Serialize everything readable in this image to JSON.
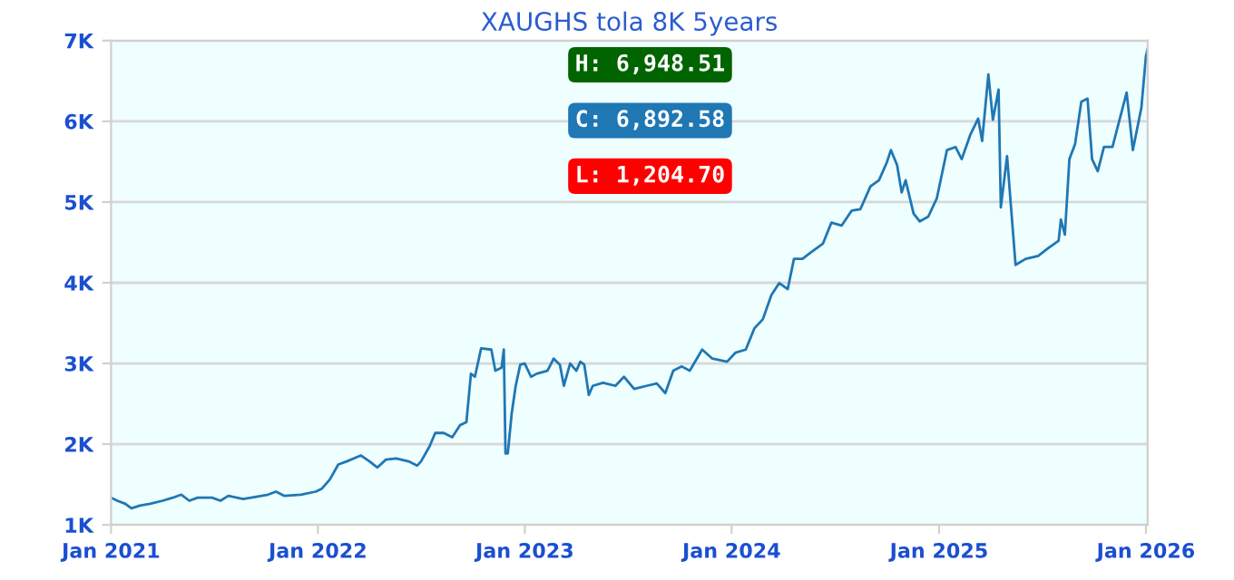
{
  "chart_data": {
    "type": "line",
    "title": "XAUGHS tola 8K 5years",
    "x": [
      "2021-01-01",
      "2021-01-12",
      "2021-01-26",
      "2021-02-06",
      "2021-02-21",
      "2021-03-11",
      "2021-04-02",
      "2021-04-20",
      "2021-05-05",
      "2021-05-19",
      "2021-06-03",
      "2021-06-28",
      "2021-07-13",
      "2021-07-27",
      "2021-08-22",
      "2021-09-17",
      "2021-10-05",
      "2021-10-19",
      "2021-11-03",
      "2021-12-02",
      "2021-12-28",
      "2022-01-08",
      "2022-01-22",
      "2022-02-06",
      "2022-02-21",
      "2022-03-18",
      "2022-04-02",
      "2022-04-16",
      "2022-05-01",
      "2022-05-19",
      "2022-06-10",
      "2022-06-25",
      "2022-07-02",
      "2022-07-17",
      "2022-07-27",
      "2022-08-11",
      "2022-08-26",
      "2022-09-09",
      "2022-09-20",
      "2022-09-28",
      "2022-10-05",
      "2022-10-16",
      "2022-11-03",
      "2022-11-10",
      "2022-11-21",
      "2022-11-25",
      "2022-11-28",
      "2022-12-02",
      "2022-12-09",
      "2022-12-16",
      "2022-12-24",
      "2023-01-01",
      "2023-01-12",
      "2023-01-22",
      "2023-02-10",
      "2023-02-21",
      "2023-03-04",
      "2023-03-11",
      "2023-03-22",
      "2023-04-02",
      "2023-04-09",
      "2023-04-16",
      "2023-04-24",
      "2023-05-01",
      "2023-05-19",
      "2023-06-10",
      "2023-06-25",
      "2023-07-13",
      "2023-08-04",
      "2023-08-22",
      "2023-09-06",
      "2023-09-20",
      "2023-10-05",
      "2023-10-19",
      "2023-11-10",
      "2023-11-28",
      "2023-12-24",
      "2024-01-08",
      "2024-01-26",
      "2024-02-10",
      "2024-02-25",
      "2024-03-11",
      "2024-03-25",
      "2024-04-09",
      "2024-04-20",
      "2024-05-05",
      "2024-05-19",
      "2024-06-10",
      "2024-06-25",
      "2024-07-13",
      "2024-07-31",
      "2024-08-15",
      "2024-09-02",
      "2024-09-17",
      "2024-10-01",
      "2024-10-08",
      "2024-10-19",
      "2024-10-27",
      "2024-11-03",
      "2024-11-17",
      "2024-11-28",
      "2024-12-13",
      "2024-12-28",
      "2025-01-15",
      "2025-01-30",
      "2025-02-10",
      "2025-02-25",
      "2025-03-11",
      "2025-03-18",
      "2025-03-29",
      "2025-04-06",
      "2025-04-16",
      "2025-04-20",
      "2025-05-01",
      "2025-05-08",
      "2025-05-16",
      "2025-06-03",
      "2025-06-25",
      "2025-07-13",
      "2025-07-31",
      "2025-08-04",
      "2025-08-11",
      "2025-08-19",
      "2025-08-29",
      "2025-09-09",
      "2025-09-20",
      "2025-09-28",
      "2025-10-08",
      "2025-10-19",
      "2025-11-03",
      "2025-11-14",
      "2025-11-28",
      "2025-12-09",
      "2025-12-24",
      "2026-01-01",
      "2026-01-04"
    ],
    "series": [
      {
        "color": "#1f77b4",
        "values": [
          1337,
          1300,
          1262,
          1205,
          1240,
          1262,
          1300,
          1337,
          1375,
          1300,
          1337,
          1337,
          1300,
          1360,
          1322,
          1352,
          1375,
          1412,
          1360,
          1375,
          1412,
          1449,
          1562,
          1749,
          1787,
          1861,
          1787,
          1712,
          1809,
          1824,
          1787,
          1734,
          1787,
          1974,
          2139,
          2139,
          2086,
          2236,
          2273,
          2873,
          2835,
          3187,
          3172,
          2910,
          2948,
          3172,
          1884,
          1884,
          2386,
          2723,
          2985,
          3000,
          2835,
          2873,
          2910,
          3060,
          2985,
          2723,
          3000,
          2910,
          3022,
          2985,
          2610,
          2723,
          2760,
          2723,
          2835,
          2685,
          2723,
          2753,
          2633,
          2910,
          2963,
          2910,
          3172,
          3060,
          3022,
          3135,
          3172,
          3434,
          3547,
          3846,
          3996,
          3921,
          4296,
          4296,
          4371,
          4483,
          4745,
          4708,
          4895,
          4910,
          5195,
          5270,
          5494,
          5644,
          5457,
          5120,
          5270,
          4858,
          4760,
          4820,
          5045,
          5644,
          5682,
          5532,
          5831,
          6034,
          5757,
          6581,
          6019,
          6393,
          4933,
          5569,
          4933,
          4221,
          4296,
          4333,
          4431,
          4521,
          4783,
          4596,
          5532,
          5719,
          6243,
          6281,
          5532,
          5382,
          5682,
          5682,
          5981,
          6356,
          5644,
          6169,
          6805,
          6893
        ]
      }
    ],
    "xlim": [
      "2021-01-01",
      "2026-01-04"
    ],
    "xticks": [
      {
        "value": "2021-01-01",
        "label": "Jan 2021"
      },
      {
        "value": "2022-01-01",
        "label": "Jan 2022"
      },
      {
        "value": "2023-01-01",
        "label": "Jan 2023"
      },
      {
        "value": "2024-01-01",
        "label": "Jan 2024"
      },
      {
        "value": "2025-01-01",
        "label": "Jan 2025"
      },
      {
        "value": "2026-01-01",
        "label": "Jan 2026"
      }
    ],
    "ylim": [
      1000,
      7000
    ],
    "yticks": [
      {
        "value": 1000,
        "label": "1K"
      },
      {
        "value": 2000,
        "label": "2K"
      },
      {
        "value": 3000,
        "label": "3K"
      },
      {
        "value": 4000,
        "label": "4K"
      },
      {
        "value": 5000,
        "label": "5K"
      },
      {
        "value": 6000,
        "label": "6K"
      },
      {
        "value": 7000,
        "label": "7K"
      }
    ],
    "grid": "y",
    "annotations": [
      "H: 6,948.51",
      "C: 6,892.58",
      "L: 1,204.70"
    ]
  }
}
